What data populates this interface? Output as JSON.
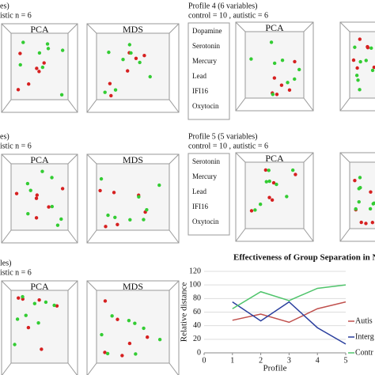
{
  "panels": [
    {
      "title_lines": [
        "es)",
        "istic n = 6"
      ],
      "labels": [
        "PCA",
        "MDS"
      ]
    },
    {
      "title_lines": [
        "es)",
        "istic n = 6"
      ],
      "labels": [
        "PCA",
        "MDS"
      ]
    },
    {
      "title_lines": [
        "les)",
        "istic n = 6"
      ],
      "labels": [
        "PCA",
        "MDS"
      ]
    }
  ],
  "profile4": {
    "title": "Profile 4 (6 variables)",
    "subtitle": "control = 10 , autistic = 6",
    "variables": [
      "Dopamine",
      "Serotonin",
      "Mercury",
      "Lead",
      "IFI16",
      "Oxytocin"
    ],
    "labels": [
      "PCA"
    ]
  },
  "profile5": {
    "title": "Profile 5 (5 variables)",
    "subtitle": "control = 10 , autistic = 6",
    "variables": [
      "Serotonin",
      "Mercury",
      "Lead",
      "IFI16",
      "Oxytocin"
    ],
    "labels": [
      "PCA"
    ]
  },
  "chart_data": {
    "type": "line",
    "title": "Effectiveness of Group Separation in N",
    "ylabel": "Relative distance",
    "xlabel": "Profile",
    "x": [
      1,
      2,
      3,
      4,
      5
    ],
    "series": [
      {
        "name": "Autis",
        "color": "#c0504d",
        "values": [
          48,
          57,
          45,
          65,
          75
        ]
      },
      {
        "name": "Interg",
        "color": "#2a3f9e",
        "values": [
          75,
          47,
          75,
          37,
          13
        ]
      },
      {
        "name": "Contr",
        "color": "#4fc46b",
        "values": [
          65,
          90,
          77,
          95,
          100
        ]
      }
    ],
    "xlim": [
      0,
      5
    ],
    "xticks": [
      0,
      1,
      2,
      3,
      4,
      5
    ],
    "ylim": [
      0,
      120
    ],
    "yticks": [
      0,
      20,
      40,
      60,
      80,
      100,
      120
    ],
    "grid": true
  }
}
